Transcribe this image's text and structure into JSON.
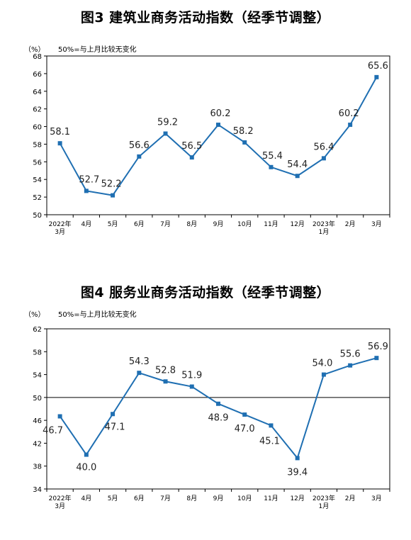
{
  "chart_data": [
    {
      "type": "line",
      "title": "图3  建筑业商务活动指数（经季节调整）",
      "unit_label": "（%）",
      "note": "50%=与上月比较无变化",
      "categories": [
        [
          "2022年",
          "3月"
        ],
        [
          "4月"
        ],
        [
          "5月"
        ],
        [
          "6月"
        ],
        [
          "7月"
        ],
        [
          "8月"
        ],
        [
          "9月"
        ],
        [
          "10月"
        ],
        [
          "11月"
        ],
        [
          "12月"
        ],
        [
          "2023年",
          "1月"
        ],
        [
          "2月"
        ],
        [
          "3月"
        ]
      ],
      "series": [
        {
          "values": [
            58.1,
            52.7,
            52.2,
            56.6,
            59.2,
            56.5,
            60.2,
            58.2,
            55.4,
            54.4,
            56.4,
            60.2,
            65.6
          ]
        }
      ],
      "value_labels": [
        "58.1",
        "52.7",
        "52.2",
        "56.6",
        "59.2",
        "56.5",
        "60.2",
        "58.2",
        "55.4",
        "54.4",
        "56.4",
        "60.2",
        "65.6"
      ],
      "ylim": [
        50,
        68
      ],
      "yticks": [
        50,
        52,
        54,
        56,
        58,
        60,
        62,
        64,
        66,
        68
      ],
      "reference_line": null,
      "color": "#1f6fb2"
    },
    {
      "type": "line",
      "title": "图4  服务业商务活动指数（经季节调整）",
      "unit_label": "（%）",
      "note": "50%=与上月比较无变化",
      "categories": [
        [
          "2022年",
          "3月"
        ],
        [
          "4月"
        ],
        [
          "5月"
        ],
        [
          "6月"
        ],
        [
          "7月"
        ],
        [
          "8月"
        ],
        [
          "9月"
        ],
        [
          "10月"
        ],
        [
          "11月"
        ],
        [
          "12月"
        ],
        [
          "2023年",
          "1月"
        ],
        [
          "2月"
        ],
        [
          "3月"
        ]
      ],
      "series": [
        {
          "values": [
            46.7,
            40.0,
            47.1,
            54.3,
            52.8,
            51.9,
            48.9,
            47.0,
            45.1,
            39.4,
            54.0,
            55.6,
            56.9
          ]
        }
      ],
      "value_labels": [
        "46.7",
        "40.0",
        "47.1",
        "54.3",
        "52.8",
        "51.9",
        "48.9",
        "47.0",
        "45.1",
        "39.4",
        "54.0",
        "55.6",
        "56.9"
      ],
      "ylim": [
        34,
        62
      ],
      "yticks": [
        34,
        38,
        42,
        46,
        50,
        54,
        58,
        62
      ],
      "reference_line": 50,
      "color": "#1f6fb2"
    }
  ]
}
